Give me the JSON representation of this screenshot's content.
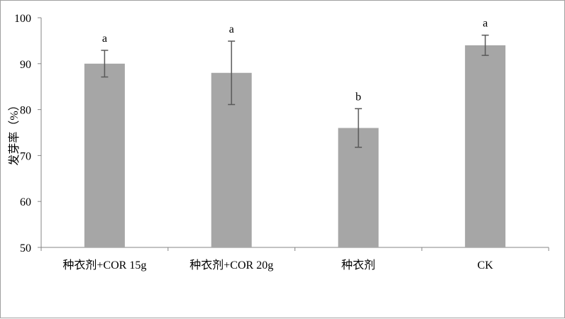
{
  "chart_data": {
    "type": "bar",
    "title": "",
    "xlabel": "",
    "ylabel": "发芽率（%）",
    "categories": [
      "种衣剂+COR 15g",
      "种衣剂+COR 20g",
      "种衣剂",
      "CK"
    ],
    "values": [
      90,
      88,
      76,
      94
    ],
    "errors": [
      2.9,
      6.9,
      4.2,
      2.2
    ],
    "significance_labels": [
      "a",
      "a",
      "b",
      "a"
    ],
    "ylim": [
      50,
      100
    ],
    "yticks": [
      50,
      60,
      70,
      80,
      90,
      100
    ],
    "grid": false,
    "legend": "none",
    "colors": {
      "bar": "#a6a6a6",
      "error_bar": "#595959",
      "axis": "#868686"
    }
  }
}
